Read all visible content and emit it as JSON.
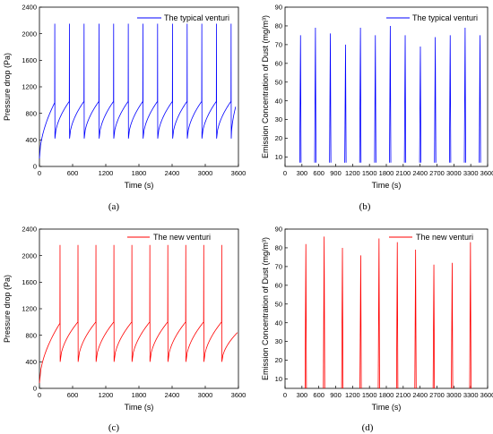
{
  "chart_data": [
    {
      "type": "line",
      "panel_label": "(a)",
      "xlabel": "Time (s)",
      "ylabel": "Pressure drop (Pa)",
      "xlim": [
        0,
        3600
      ],
      "ylim": [
        0,
        2400
      ],
      "xticks": [
        0,
        600,
        1200,
        1800,
        2400,
        3000,
        3600
      ],
      "yticks": [
        0,
        400,
        800,
        1200,
        1600,
        2000,
        2400
      ],
      "grid": false,
      "legend_position": "top-right",
      "color": "#0000ff",
      "series": [
        {
          "name": "The typical venturi",
          "cycles": [
            {
              "start": 0,
              "end": 275,
              "start_value": 120,
              "end_value": 960
            },
            {
              "start": 280,
              "end": 540,
              "start_value": 420,
              "end_value": 980
            },
            {
              "start": 545,
              "end": 805,
              "start_value": 420,
              "end_value": 980
            },
            {
              "start": 810,
              "end": 1075,
              "start_value": 420,
              "end_value": 980
            },
            {
              "start": 1080,
              "end": 1340,
              "start_value": 420,
              "end_value": 980
            },
            {
              "start": 1345,
              "end": 1605,
              "start_value": 420,
              "end_value": 980
            },
            {
              "start": 1610,
              "end": 1870,
              "start_value": 420,
              "end_value": 980
            },
            {
              "start": 1875,
              "end": 2135,
              "start_value": 420,
              "end_value": 980
            },
            {
              "start": 2140,
              "end": 2405,
              "start_value": 420,
              "end_value": 980
            },
            {
              "start": 2410,
              "end": 2670,
              "start_value": 420,
              "end_value": 980
            },
            {
              "start": 2675,
              "end": 2935,
              "start_value": 420,
              "end_value": 980
            },
            {
              "start": 2940,
              "end": 3200,
              "start_value": 420,
              "end_value": 980
            },
            {
              "start": 3205,
              "end": 3465,
              "start_value": 420,
              "end_value": 980
            },
            {
              "start": 3470,
              "end": 3550,
              "start_value": 420,
              "end_value": 900
            }
          ],
          "peak_value": 2150
        }
      ]
    },
    {
      "type": "line",
      "panel_label": "(b)",
      "xlabel": "Time (s)",
      "ylabel": "Emission Concentration of Dust (mg/m³)",
      "xlim": [
        0,
        3600
      ],
      "ylim": [
        5,
        90
      ],
      "xticks": [
        0,
        300,
        600,
        900,
        1200,
        1500,
        1800,
        2100,
        2400,
        2700,
        3000,
        3300,
        3600
      ],
      "yticks": [
        10,
        20,
        30,
        40,
        50,
        60,
        70,
        80,
        90
      ],
      "grid": false,
      "legend_position": "top-right",
      "color": "#0000ff",
      "series": [
        {
          "name": "The typical venturi",
          "spikes": [
            {
              "x": 275,
              "y": 75
            },
            {
              "x": 540,
              "y": 79
            },
            {
              "x": 805,
              "y": 76
            },
            {
              "x": 1075,
              "y": 70
            },
            {
              "x": 1340,
              "y": 79
            },
            {
              "x": 1605,
              "y": 75
            },
            {
              "x": 1870,
              "y": 80
            },
            {
              "x": 2135,
              "y": 75
            },
            {
              "x": 2405,
              "y": 69
            },
            {
              "x": 2670,
              "y": 74
            },
            {
              "x": 2935,
              "y": 75
            },
            {
              "x": 3200,
              "y": 79
            },
            {
              "x": 3465,
              "y": 75
            }
          ],
          "baseline": 7
        }
      ]
    },
    {
      "type": "line",
      "panel_label": "(c)",
      "xlabel": "Time (s)",
      "ylabel": "Pressure drop (Pa)",
      "xlim": [
        0,
        3600
      ],
      "ylim": [
        0,
        2400
      ],
      "xticks": [
        0,
        600,
        1200,
        1800,
        2400,
        3000,
        3600
      ],
      "yticks": [
        0,
        400,
        800,
        1200,
        1600,
        2000,
        2400
      ],
      "grid": false,
      "legend_position": "top-right",
      "color": "#ff0000",
      "series": [
        {
          "name": "The new venturi",
          "cycles": [
            {
              "start": 0,
              "end": 370,
              "start_value": 80,
              "end_value": 980
            },
            {
              "start": 375,
              "end": 695,
              "start_value": 400,
              "end_value": 1000
            },
            {
              "start": 700,
              "end": 1020,
              "start_value": 400,
              "end_value": 1000
            },
            {
              "start": 1025,
              "end": 1345,
              "start_value": 400,
              "end_value": 1000
            },
            {
              "start": 1350,
              "end": 1670,
              "start_value": 400,
              "end_value": 1000
            },
            {
              "start": 1675,
              "end": 1995,
              "start_value": 400,
              "end_value": 1000
            },
            {
              "start": 2000,
              "end": 2320,
              "start_value": 400,
              "end_value": 1000
            },
            {
              "start": 2325,
              "end": 2645,
              "start_value": 400,
              "end_value": 1000
            },
            {
              "start": 2650,
              "end": 2970,
              "start_value": 400,
              "end_value": 1000
            },
            {
              "start": 2975,
              "end": 3295,
              "start_value": 400,
              "end_value": 1000
            },
            {
              "start": 3300,
              "end": 3580,
              "start_value": 400,
              "end_value": 840
            }
          ],
          "peak_value": 2160
        }
      ]
    },
    {
      "type": "line",
      "panel_label": "(d)",
      "xlabel": "Time (s)",
      "ylabel": "Emission Concentration of Dust (mg/m³)",
      "xlim": [
        0,
        3600
      ],
      "ylim": [
        5,
        90
      ],
      "xticks": [
        0,
        300,
        600,
        900,
        1200,
        1500,
        1800,
        2100,
        2400,
        2700,
        3000,
        3300,
        3600
      ],
      "yticks": [
        10,
        20,
        30,
        40,
        50,
        60,
        70,
        80,
        90
      ],
      "grid": false,
      "legend_position": "top-right",
      "color": "#ff0000",
      "series": [
        {
          "name": "The new venturi",
          "spikes": [
            {
              "x": 370,
              "y": 82
            },
            {
              "x": 695,
              "y": 86
            },
            {
              "x": 1020,
              "y": 80
            },
            {
              "x": 1345,
              "y": 76
            },
            {
              "x": 1670,
              "y": 85
            },
            {
              "x": 1995,
              "y": 83
            },
            {
              "x": 2320,
              "y": 79
            },
            {
              "x": 2645,
              "y": 71
            },
            {
              "x": 2970,
              "y": 72
            },
            {
              "x": 3295,
              "y": 83
            }
          ],
          "baseline": 5
        }
      ]
    }
  ]
}
